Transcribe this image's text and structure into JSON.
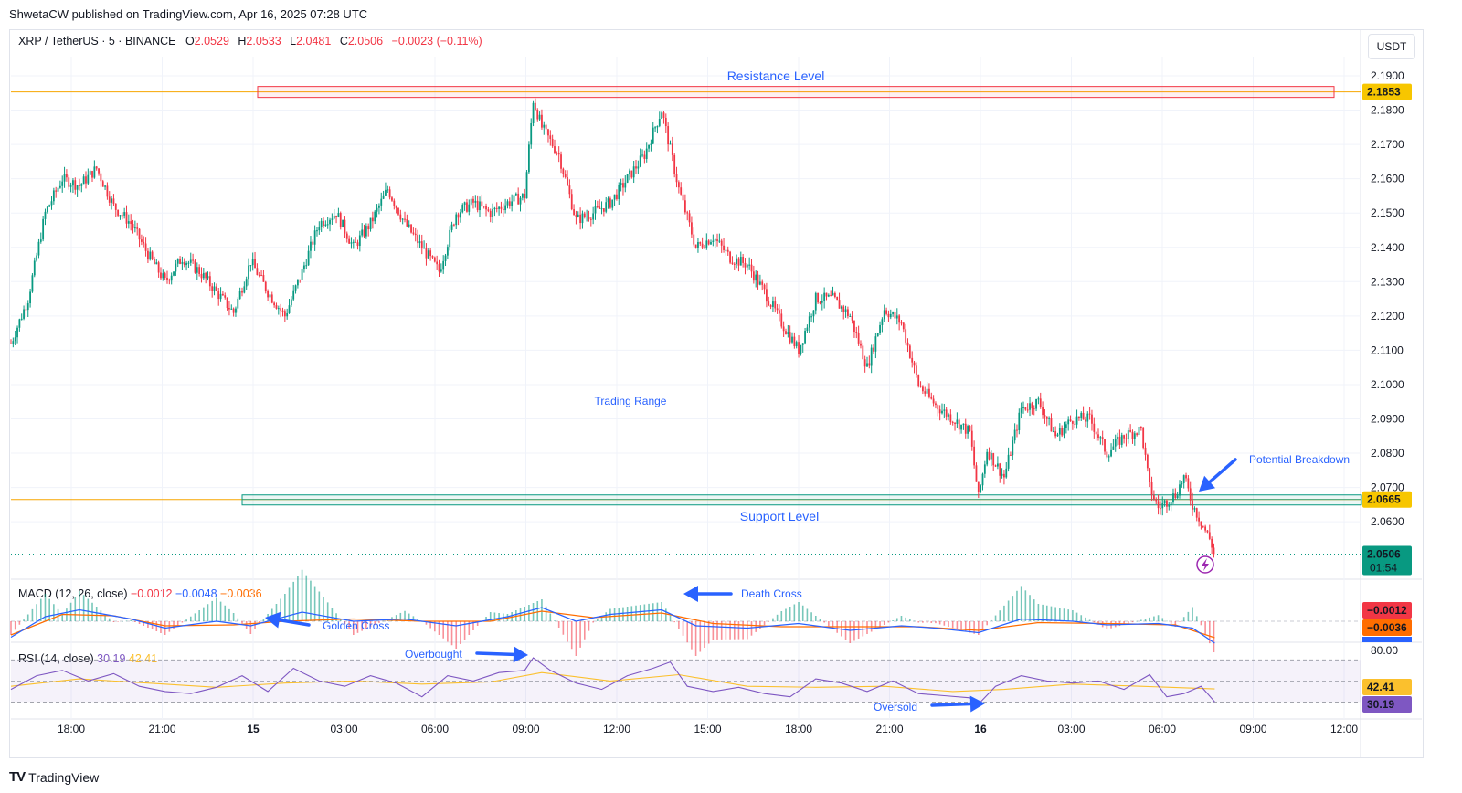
{
  "published": "ShwetaCW published on TradingView.com, Apr 16, 2025 07:28 UTC",
  "legend": {
    "symbol": "XRP / TetherUS · 5 · BINANCE",
    "o_label": "O",
    "o": "2.0529",
    "h_label": "H",
    "h": "2.0533",
    "l_label": "L",
    "l": "2.0481",
    "c_label": "C",
    "c": "2.0506",
    "change": "−0.0023 (−0.11%)"
  },
  "currency": "USDT",
  "macd": {
    "label": "MACD (12, 26, close)",
    "hist": "−0.0012",
    "macd": "−0.0048",
    "signal": "−0.0036"
  },
  "rsi": {
    "label": "RSI (14, close)",
    "rsi": "30.19",
    "ma": "42.41"
  },
  "annotations": {
    "resistance": "Resistance Level",
    "support": "Support Level",
    "range": "Trading Range",
    "breakdown": "Potential Breakdown",
    "golden": "Golden Cross",
    "death": "Death Cross",
    "overbought": "Overbought",
    "oversold": "Oversold"
  },
  "badges": {
    "resistance": "2.1853",
    "support": "2.0665",
    "last": "2.0506",
    "countdown": "01:54",
    "macd_hist": "−0.0012",
    "macd_signal": "−0.0036",
    "rsi_top": "80.00",
    "rsi_ma": "42.41",
    "rsi_val": "30.19"
  },
  "footer": {
    "logo": "TV",
    "brand": "TradingView"
  },
  "colors": {
    "up": "#089981",
    "down": "#f23645",
    "resistance": "#f23645",
    "support": "#089981",
    "macd": "#2962ff",
    "signal": "#ff6d00",
    "rsi": "#7e57c2",
    "rsi_ma": "#fbc02d",
    "arrow": "#2962ff"
  },
  "chart_data": {
    "type": "candlestick",
    "interval": "5",
    "y_ticks": [
      "2.1900",
      "2.1800",
      "2.1700",
      "2.1600",
      "2.1500",
      "2.1400",
      "2.1300",
      "2.1200",
      "2.1100",
      "2.1000",
      "2.0900",
      "2.0800",
      "2.0700",
      "2.0600"
    ],
    "ylim": [
      2.048,
      2.194
    ],
    "x_ticks": [
      "18:00",
      "21:00",
      "15",
      "03:00",
      "06:00",
      "09:00",
      "12:00",
      "15:00",
      "18:00",
      "21:00",
      "16",
      "03:00",
      "06:00",
      "09:00",
      "12:00"
    ],
    "resistance_level": 2.1853,
    "support_level": 2.0665,
    "last_price": 2.0506,
    "path": [
      [
        0,
        2.112
      ],
      [
        2,
        2.125
      ],
      [
        4,
        2.15
      ],
      [
        6,
        2.16
      ],
      [
        8,
        2.158
      ],
      [
        10,
        2.163
      ],
      [
        12,
        2.152
      ],
      [
        14,
        2.147
      ],
      [
        16,
        2.138
      ],
      [
        18,
        2.13
      ],
      [
        20,
        2.137
      ],
      [
        22,
        2.133
      ],
      [
        24,
        2.127
      ],
      [
        26,
        2.121
      ],
      [
        28,
        2.136
      ],
      [
        30,
        2.127
      ],
      [
        32,
        2.12
      ],
      [
        34,
        2.133
      ],
      [
        36,
        2.147
      ],
      [
        38,
        2.15
      ],
      [
        40,
        2.14
      ],
      [
        42,
        2.147
      ],
      [
        44,
        2.157
      ],
      [
        46,
        2.147
      ],
      [
        48,
        2.14
      ],
      [
        50,
        2.133
      ],
      [
        52,
        2.15
      ],
      [
        54,
        2.153
      ],
      [
        56,
        2.15
      ],
      [
        58,
        2.153
      ],
      [
        60,
        2.155
      ],
      [
        61,
        2.183
      ],
      [
        62,
        2.175
      ],
      [
        64,
        2.167
      ],
      [
        66,
        2.148
      ],
      [
        68,
        2.15
      ],
      [
        70,
        2.153
      ],
      [
        72,
        2.16
      ],
      [
        74,
        2.167
      ],
      [
        76,
        2.18
      ],
      [
        78,
        2.157
      ],
      [
        80,
        2.14
      ],
      [
        82,
        2.143
      ],
      [
        84,
        2.137
      ],
      [
        86,
        2.135
      ],
      [
        88,
        2.127
      ],
      [
        90,
        2.118
      ],
      [
        92,
        2.11
      ],
      [
        94,
        2.125
      ],
      [
        96,
        2.125
      ],
      [
        98,
        2.12
      ],
      [
        100,
        2.105
      ],
      [
        102,
        2.122
      ],
      [
        104,
        2.118
      ],
      [
        106,
        2.1
      ],
      [
        108,
        2.094
      ],
      [
        110,
        2.09
      ],
      [
        112,
        2.086
      ],
      [
        113,
        2.067
      ],
      [
        114,
        2.081
      ],
      [
        116,
        2.073
      ],
      [
        118,
        2.093
      ],
      [
        120,
        2.095
      ],
      [
        122,
        2.085
      ],
      [
        124,
        2.09
      ],
      [
        126,
        2.09
      ],
      [
        128,
        2.08
      ],
      [
        130,
        2.085
      ],
      [
        132,
        2.087
      ],
      [
        133,
        2.07
      ],
      [
        134,
        2.064
      ],
      [
        136,
        2.068
      ],
      [
        137,
        2.073
      ],
      [
        138,
        2.065
      ],
      [
        140,
        2.055
      ],
      [
        140.6,
        2.0506
      ]
    ],
    "macd_range": [
      -0.004,
      0.004
    ],
    "macd_path": [
      [
        0,
        -0.0035
      ],
      [
        4,
        0.001
      ],
      [
        8,
        0.0025
      ],
      [
        14,
        0.0005
      ],
      [
        18,
        -0.0015
      ],
      [
        24,
        0
      ],
      [
        28,
        -0.001
      ],
      [
        34,
        0.002
      ],
      [
        40,
        0
      ],
      [
        46,
        0.0005
      ],
      [
        52,
        -0.001
      ],
      [
        58,
        0.001
      ],
      [
        62,
        0.003
      ],
      [
        66,
        0
      ],
      [
        70,
        0.0015
      ],
      [
        76,
        0.0025
      ],
      [
        80,
        -0.001
      ],
      [
        86,
        -0.0015
      ],
      [
        92,
        -0.0005
      ],
      [
        98,
        -0.002
      ],
      [
        104,
        -0.001
      ],
      [
        108,
        -0.0015
      ],
      [
        113,
        -0.0025
      ],
      [
        118,
        0.0005
      ],
      [
        124,
        0
      ],
      [
        128,
        -0.0008
      ],
      [
        134,
        -0.0005
      ],
      [
        138,
        -0.0015
      ],
      [
        140.6,
        -0.0048
      ]
    ],
    "signal_path": [
      [
        0,
        -0.003
      ],
      [
        6,
        0.0015
      ],
      [
        12,
        0.0012
      ],
      [
        18,
        -0.001
      ],
      [
        26,
        -0.0008
      ],
      [
        32,
        0
      ],
      [
        40,
        0.0005
      ],
      [
        48,
        0
      ],
      [
        56,
        0
      ],
      [
        62,
        0.0022
      ],
      [
        68,
        0.0008
      ],
      [
        76,
        0.0018
      ],
      [
        82,
        -0.0005
      ],
      [
        90,
        -0.0012
      ],
      [
        98,
        -0.0012
      ],
      [
        106,
        -0.0012
      ],
      [
        113,
        -0.002
      ],
      [
        120,
        -0.0003
      ],
      [
        128,
        -0.0005
      ],
      [
        136,
        -0.0008
      ],
      [
        140.6,
        -0.0036
      ]
    ],
    "rsi_range": [
      20,
      85
    ],
    "rsi_levels": [
      70,
      50,
      30
    ],
    "rsi_path": [
      [
        0,
        42
      ],
      [
        3,
        55
      ],
      [
        6,
        60
      ],
      [
        9,
        50
      ],
      [
        12,
        57
      ],
      [
        15,
        45
      ],
      [
        18,
        40
      ],
      [
        21,
        38
      ],
      [
        24,
        44
      ],
      [
        27,
        55
      ],
      [
        30,
        40
      ],
      [
        33,
        62
      ],
      [
        36,
        50
      ],
      [
        39,
        45
      ],
      [
        42,
        55
      ],
      [
        45,
        48
      ],
      [
        48,
        35
      ],
      [
        51,
        55
      ],
      [
        54,
        50
      ],
      [
        57,
        58
      ],
      [
        60,
        60
      ],
      [
        61,
        72
      ],
      [
        63,
        60
      ],
      [
        66,
        48
      ],
      [
        69,
        42
      ],
      [
        72,
        55
      ],
      [
        75,
        62
      ],
      [
        77,
        68
      ],
      [
        79,
        45
      ],
      [
        82,
        40
      ],
      [
        85,
        44
      ],
      [
        88,
        38
      ],
      [
        91,
        35
      ],
      [
        94,
        52
      ],
      [
        97,
        48
      ],
      [
        100,
        40
      ],
      [
        103,
        50
      ],
      [
        106,
        38
      ],
      [
        109,
        36
      ],
      [
        112,
        34
      ],
      [
        113,
        28
      ],
      [
        115,
        45
      ],
      [
        118,
        55
      ],
      [
        121,
        50
      ],
      [
        124,
        48
      ],
      [
        127,
        50
      ],
      [
        130,
        42
      ],
      [
        133,
        56
      ],
      [
        135,
        35
      ],
      [
        137,
        38
      ],
      [
        139,
        45
      ],
      [
        140.6,
        30.19
      ]
    ],
    "rsi_ma_path": [
      [
        0,
        45
      ],
      [
        8,
        52
      ],
      [
        16,
        48
      ],
      [
        24,
        44
      ],
      [
        32,
        48
      ],
      [
        40,
        50
      ],
      [
        48,
        47
      ],
      [
        56,
        49
      ],
      [
        62,
        58
      ],
      [
        70,
        50
      ],
      [
        78,
        56
      ],
      [
        86,
        45
      ],
      [
        94,
        44
      ],
      [
        102,
        45
      ],
      [
        110,
        40
      ],
      [
        116,
        42
      ],
      [
        124,
        47
      ],
      [
        132,
        45
      ],
      [
        140.6,
        42.41
      ]
    ]
  }
}
